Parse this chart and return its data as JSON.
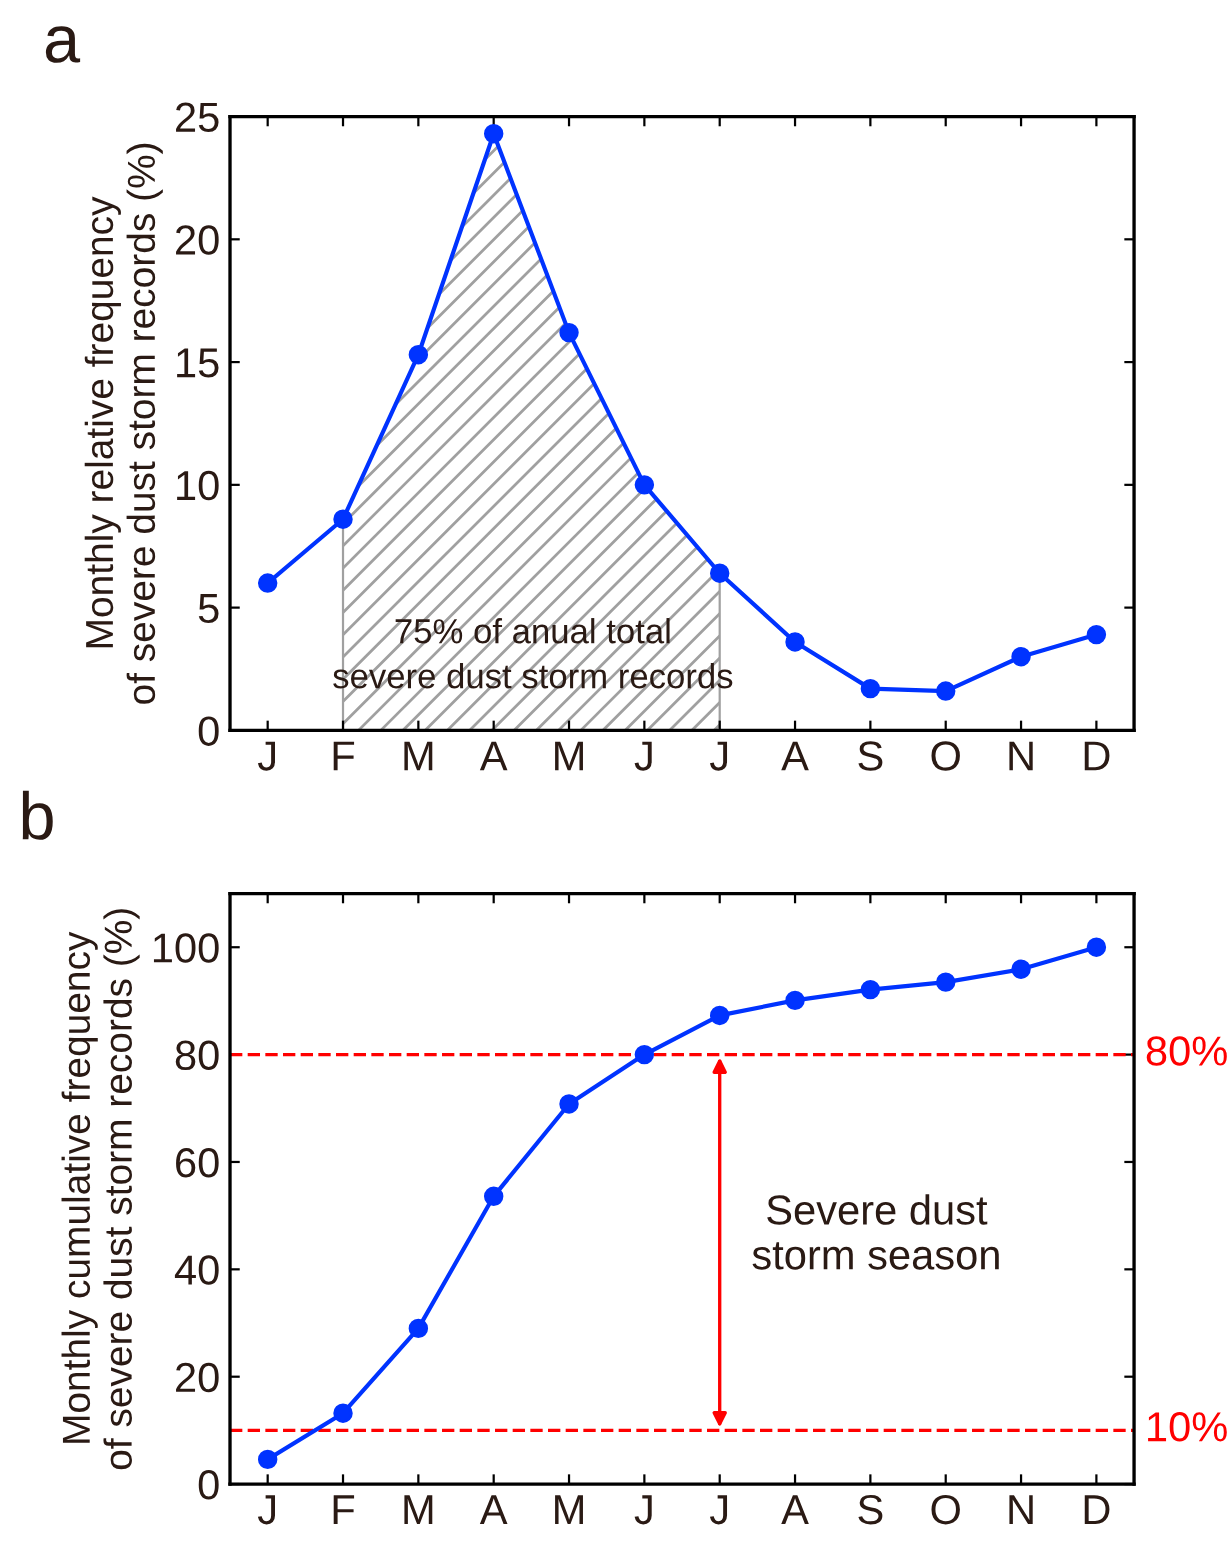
{
  "chart_data": [
    {
      "type": "line",
      "title": "a",
      "ylabel": "Monthly relative frequency\nof severe dust storm records (%)",
      "categories": [
        "J",
        "F",
        "M",
        "A",
        "M",
        "J",
        "J",
        "A",
        "S",
        "O",
        "N",
        "D"
      ],
      "series": [
        {
          "type": "area",
          "color": "#a0a0a0",
          "marker": "none",
          "values": [
            null,
            8.6,
            15.3,
            24.3,
            16.2,
            10.0,
            6.4,
            null,
            null,
            null,
            null,
            null
          ]
        },
        {
          "type": "line",
          "color": "#0033ff",
          "values": [
            6.0,
            8.6,
            15.3,
            24.3,
            16.2,
            10.0,
            6.4,
            3.6,
            1.7,
            1.6,
            3.0,
            3.9
          ]
        }
      ],
      "ylim": [
        0,
        25
      ],
      "yticks": [
        0,
        5,
        10,
        15,
        20,
        25
      ],
      "marker": "circle",
      "line_style": "solid",
      "grid": false,
      "legend": false,
      "annotations": [
        "75% of anual total\nsevere dust storm records"
      ]
    },
    {
      "type": "line",
      "title": "b",
      "ylabel": "Monthly cumulative frequency\nof severe dust storm records (%)",
      "categories": [
        "J",
        "F",
        "M",
        "A",
        "M",
        "J",
        "J",
        "A",
        "S",
        "O",
        "N",
        "D"
      ],
      "series": [
        {
          "color": "#0033ff",
          "values": [
            4.6,
            13.2,
            29.0,
            53.6,
            70.8,
            80.0,
            87.3,
            90.1,
            92.1,
            93.5,
            95.9,
            100.0
          ]
        }
      ],
      "ylim": [
        0,
        110
      ],
      "yticks": [
        0,
        20,
        40,
        60,
        80,
        100
      ],
      "marker": "circle",
      "line_style": "solid",
      "grid": false,
      "legend": false,
      "ref_lines": [
        {
          "axis": "y",
          "value": 80,
          "label": "80%",
          "color": "#ff0000",
          "line_style": "dashed"
        },
        {
          "axis": "y",
          "value": 10,
          "label": "10%",
          "color": "#ff0000",
          "line_style": "dashed"
        }
      ],
      "annotations": [
        "Severe dust\nstorm season"
      ]
    }
  ]
}
